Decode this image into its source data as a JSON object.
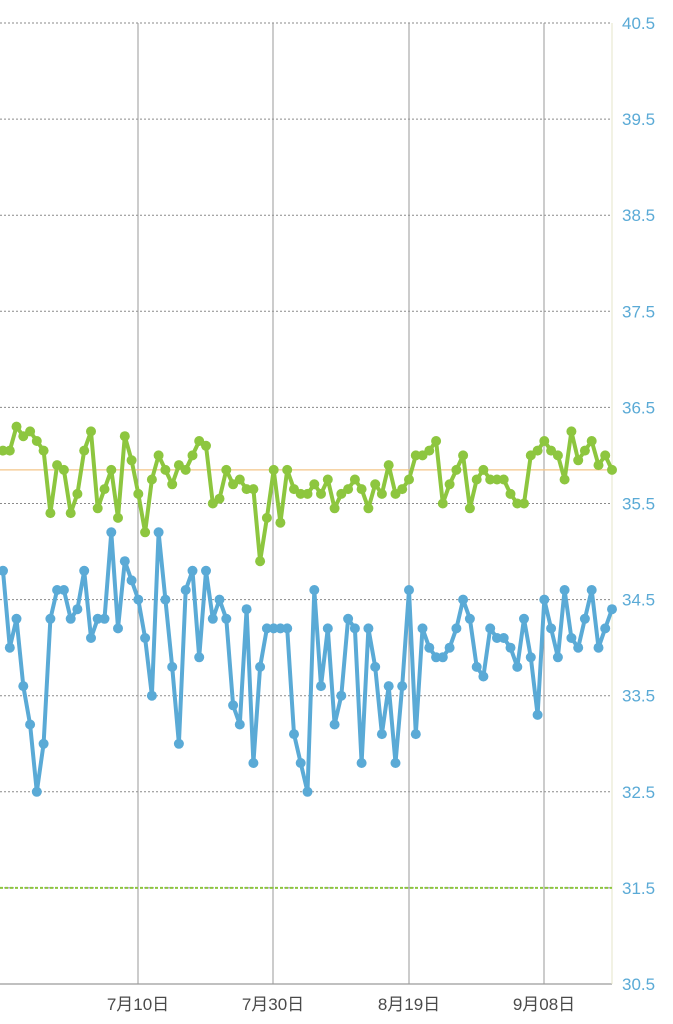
{
  "chart_data": {
    "type": "line",
    "x_ticks": [
      "7月10日",
      "7月30日",
      "8月19日",
      "9月08日"
    ],
    "y_ticks": [
      "40.5",
      "39.5",
      "38.5",
      "37.5",
      "36.5",
      "35.5",
      "34.5",
      "33.5",
      "32.5",
      "31.5",
      "30.5"
    ],
    "ylim": [
      30.5,
      40.5
    ],
    "grid": true,
    "reference_lines": [
      {
        "value": 35.85,
        "style": "solid",
        "color": "#f4c58a"
      },
      {
        "value": 31.5,
        "style": "dashed",
        "color": "#8dc63f"
      }
    ],
    "colors": {
      "series_upper": "#8dc63f",
      "series_lower": "#5aaad6",
      "axis_text": "#5aaad6"
    },
    "series": [
      {
        "color": "#8dc63f",
        "values": [
          36.05,
          36.05,
          36.3,
          36.2,
          36.25,
          36.15,
          36.05,
          35.4,
          35.9,
          35.85,
          35.4,
          35.6,
          36.05,
          36.25,
          35.45,
          35.65,
          35.85,
          35.35,
          36.2,
          35.95,
          35.6,
          35.2,
          35.75,
          36.0,
          35.85,
          35.7,
          35.9,
          35.85,
          36.0,
          36.15,
          36.1,
          35.5,
          35.55,
          35.85,
          35.7,
          35.75,
          35.65,
          35.65,
          34.9,
          35.35,
          35.85,
          35.3,
          35.85,
          35.65,
          35.6,
          35.6,
          35.7,
          35.6,
          35.75,
          35.45,
          35.6,
          35.65,
          35.75,
          35.65,
          35.45,
          35.7,
          35.6,
          35.9,
          35.6,
          35.65,
          35.75,
          36.0,
          36.0,
          36.05,
          36.15,
          35.5,
          35.7,
          35.85,
          36.0,
          35.45,
          35.75,
          35.85,
          35.75,
          35.75,
          35.75,
          35.6,
          35.5,
          35.5,
          36.0,
          36.05,
          36.15,
          36.05,
          36.0,
          35.75,
          36.25,
          35.95,
          36.05,
          36.15,
          35.9,
          36.0,
          35.85
        ]
      },
      {
        "color": "#5aaad6",
        "values": [
          34.8,
          34.0,
          34.3,
          33.6,
          33.2,
          32.5,
          33.0,
          34.3,
          34.6,
          34.6,
          34.3,
          34.4,
          34.8,
          34.1,
          34.3,
          34.3,
          35.2,
          34.2,
          34.9,
          34.7,
          34.5,
          34.1,
          33.5,
          35.2,
          34.5,
          33.8,
          33.0,
          34.6,
          34.8,
          33.9,
          34.8,
          34.3,
          34.5,
          34.3,
          33.4,
          33.2,
          34.4,
          32.8,
          33.8,
          34.2,
          34.2,
          34.2,
          34.2,
          33.1,
          32.8,
          32.5,
          34.6,
          33.6,
          34.2,
          33.2,
          33.5,
          34.3,
          34.2,
          32.8,
          34.2,
          33.8,
          33.1,
          33.6,
          32.8,
          33.6,
          34.6,
          33.1,
          34.2,
          34.0,
          33.9,
          33.9,
          34.0,
          34.2,
          34.5,
          34.3,
          33.8,
          33.7,
          34.2,
          34.1,
          34.1,
          34.0,
          33.8,
          34.3,
          33.9,
          33.3,
          34.5,
          34.2,
          33.9,
          34.6,
          34.1,
          34.0,
          34.3,
          34.6,
          34.0,
          34.2,
          34.4
        ]
      }
    ]
  }
}
